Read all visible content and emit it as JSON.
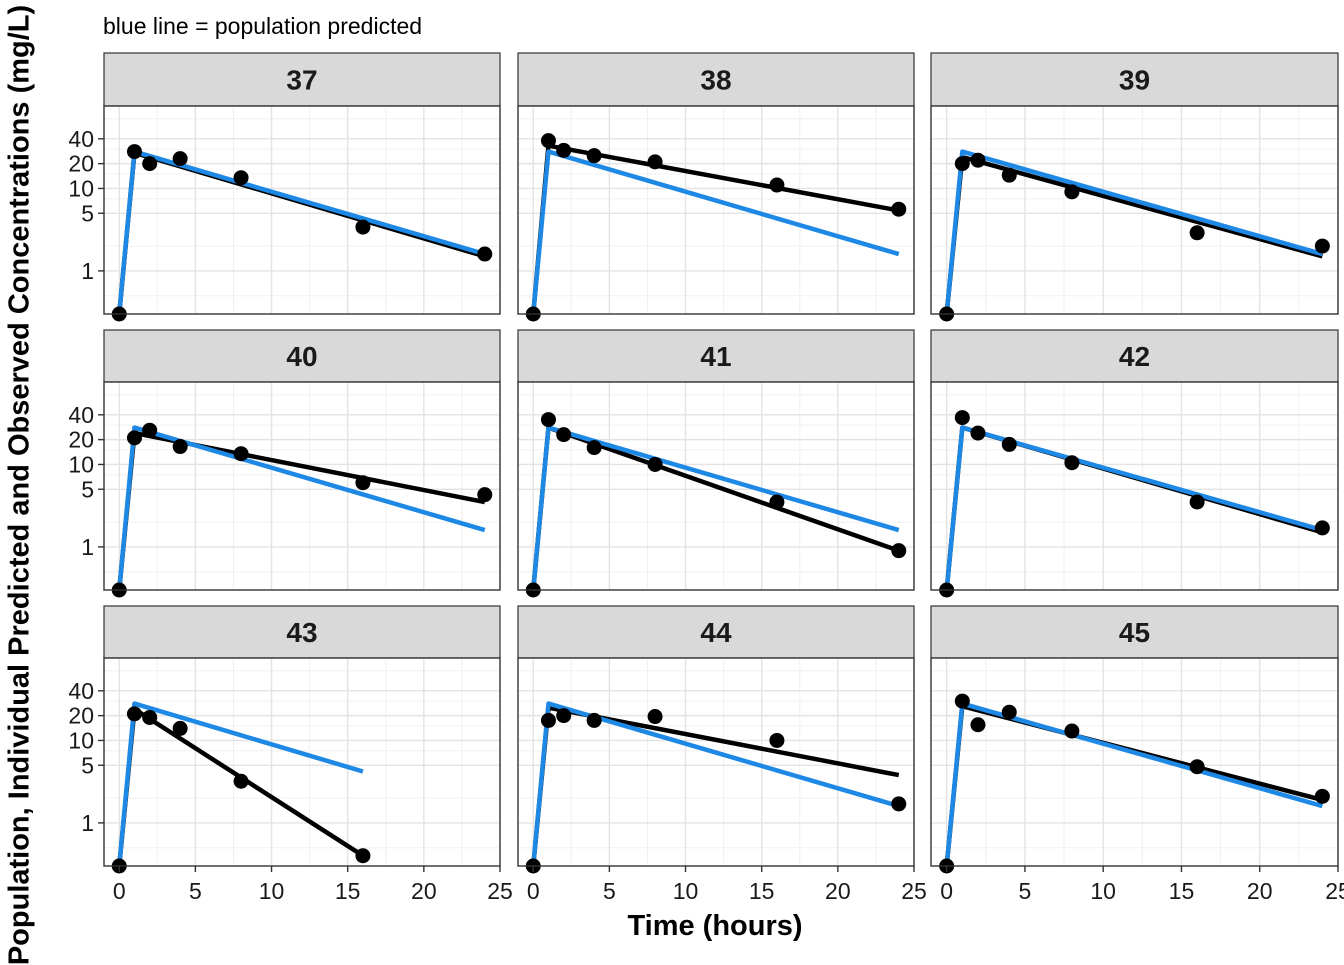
{
  "chart_data": {
    "type": "line",
    "subtitle": "blue line = population predicted",
    "xlabel": "Time (hours)",
    "ylabel": "Population, Individual Predicted and Observed Concentrations (mg/L)",
    "xlim": [
      -1,
      25
    ],
    "ylim": [
      0.3,
      100
    ],
    "y_scale": "log",
    "x_ticks": [
      0,
      5,
      10,
      15,
      20,
      25
    ],
    "y_ticks": [
      1,
      5,
      10,
      20,
      40
    ],
    "grid": true,
    "colors": {
      "individual_predicted": "#000000",
      "population_predicted": "#1E88E5",
      "observed": "#000000",
      "strip_bg": "#D9D9D9"
    },
    "panels": [
      {
        "id": "37",
        "observed": {
          "x": [
            0,
            1,
            2,
            4,
            8,
            16,
            24
          ],
          "y": [
            0.3,
            28,
            20,
            23,
            13.5,
            3.4,
            1.6
          ]
        },
        "individual_predicted": {
          "x": [
            0,
            1,
            24
          ],
          "y": [
            0.3,
            27,
            1.5
          ]
        },
        "population_predicted": {
          "x": [
            0,
            1,
            24
          ],
          "y": [
            0.3,
            28,
            1.6
          ]
        }
      },
      {
        "id": "38",
        "observed": {
          "x": [
            0,
            1,
            2,
            4,
            8,
            16,
            24
          ],
          "y": [
            0.3,
            38,
            29,
            25,
            21,
            11,
            5.6
          ]
        },
        "individual_predicted": {
          "x": [
            0,
            1,
            24
          ],
          "y": [
            0.3,
            33,
            5.4
          ]
        },
        "population_predicted": {
          "x": [
            0,
            1,
            24
          ],
          "y": [
            0.3,
            28,
            1.6
          ]
        }
      },
      {
        "id": "39",
        "observed": {
          "x": [
            0,
            1,
            2,
            4,
            8,
            16,
            24
          ],
          "y": [
            0.3,
            20,
            22,
            14.5,
            9.1,
            2.9,
            2.0
          ]
        },
        "individual_predicted": {
          "x": [
            0,
            1,
            24
          ],
          "y": [
            0.3,
            24,
            1.5
          ]
        },
        "population_predicted": {
          "x": [
            0,
            1,
            24
          ],
          "y": [
            0.3,
            28,
            1.6
          ]
        }
      },
      {
        "id": "40",
        "observed": {
          "x": [
            0,
            1,
            2,
            4,
            8,
            16,
            24
          ],
          "y": [
            0.3,
            21,
            26,
            16.5,
            13.5,
            6.0,
            4.3
          ]
        },
        "individual_predicted": {
          "x": [
            0,
            1,
            24
          ],
          "y": [
            0.3,
            24,
            3.5
          ]
        },
        "population_predicted": {
          "x": [
            0,
            1,
            24
          ],
          "y": [
            0.3,
            28,
            1.6
          ]
        }
      },
      {
        "id": "41",
        "observed": {
          "x": [
            0,
            1,
            2,
            4,
            8,
            16,
            24
          ],
          "y": [
            0.3,
            35,
            23,
            16,
            10,
            3.5,
            0.9
          ]
        },
        "individual_predicted": {
          "x": [
            0,
            1,
            24
          ],
          "y": [
            0.3,
            28,
            0.9
          ]
        },
        "population_predicted": {
          "x": [
            0,
            1,
            24
          ],
          "y": [
            0.3,
            28,
            1.6
          ]
        }
      },
      {
        "id": "42",
        "observed": {
          "x": [
            0,
            1,
            2,
            4,
            8,
            16,
            24
          ],
          "y": [
            0.3,
            37,
            24,
            17.5,
            10.5,
            3.5,
            1.7
          ]
        },
        "individual_predicted": {
          "x": [
            0,
            1,
            24
          ],
          "y": [
            0.3,
            28,
            1.5
          ]
        },
        "population_predicted": {
          "x": [
            0,
            1,
            24
          ],
          "y": [
            0.3,
            28,
            1.6
          ]
        }
      },
      {
        "id": "43",
        "observed": {
          "x": [
            0,
            1,
            2,
            4,
            8,
            16
          ],
          "y": [
            0.3,
            21,
            19,
            14,
            3.2,
            0.4
          ]
        },
        "individual_predicted": {
          "x": [
            0,
            1,
            16
          ],
          "y": [
            0.3,
            24,
            0.4
          ]
        },
        "population_predicted": {
          "x": [
            0,
            1,
            16
          ],
          "y": [
            0.3,
            28,
            4.2
          ]
        }
      },
      {
        "id": "44",
        "observed": {
          "x": [
            0,
            1,
            2,
            4,
            8,
            16,
            24
          ],
          "y": [
            0.3,
            17.5,
            20,
            17.5,
            19.5,
            10,
            1.7
          ]
        },
        "individual_predicted": {
          "x": [
            0,
            1,
            24
          ],
          "y": [
            0.3,
            25,
            3.8
          ]
        },
        "population_predicted": {
          "x": [
            0,
            1,
            24
          ],
          "y": [
            0.3,
            28,
            1.6
          ]
        }
      },
      {
        "id": "45",
        "observed": {
          "x": [
            0,
            1,
            2,
            4,
            8,
            16,
            24
          ],
          "y": [
            0.3,
            30,
            15.5,
            22,
            13,
            4.8,
            2.1
          ]
        },
        "individual_predicted": {
          "x": [
            0,
            1,
            24
          ],
          "y": [
            0.3,
            26,
            1.9
          ]
        },
        "population_predicted": {
          "x": [
            0,
            1,
            24
          ],
          "y": [
            0.3,
            28,
            1.6
          ]
        }
      }
    ]
  }
}
